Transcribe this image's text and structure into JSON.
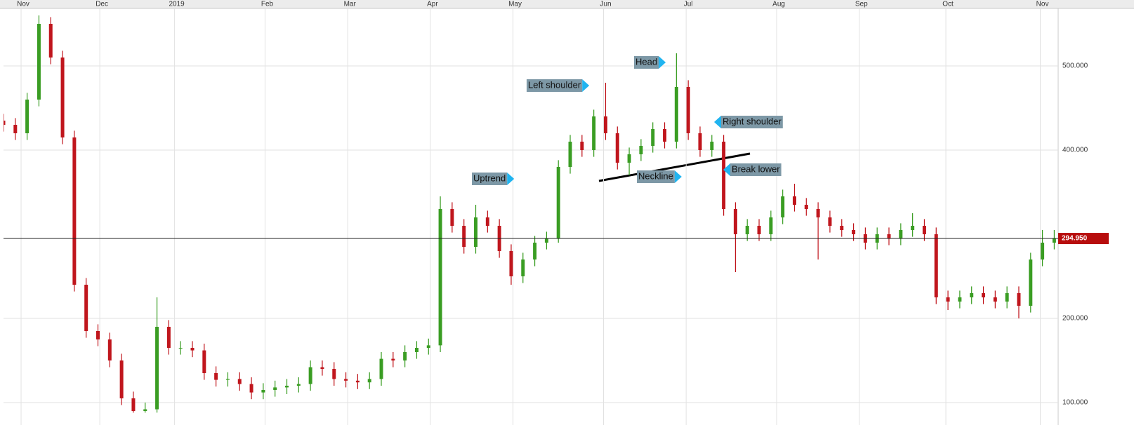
{
  "chart_data": {
    "type": "candlestick",
    "x": [
      0,
      3,
      6,
      9,
      12,
      15,
      18,
      21,
      24,
      27,
      30,
      33,
      36,
      39,
      42,
      45,
      48,
      51,
      54,
      57,
      60,
      63,
      66,
      69,
      72,
      75,
      78,
      81,
      84,
      87,
      90,
      93,
      96,
      99,
      102,
      105,
      108,
      111,
      114,
      117,
      120,
      123,
      126,
      129,
      132,
      135,
      138,
      141,
      144,
      147,
      150,
      153,
      156,
      159,
      162,
      165,
      168,
      171,
      174,
      177,
      180,
      183,
      186,
      189,
      192,
      195,
      198,
      201,
      204,
      207,
      210,
      213,
      216,
      219,
      222,
      225,
      228,
      231,
      234,
      237,
      240,
      243,
      246,
      249,
      252,
      255,
      258,
      261,
      264,
      267
    ],
    "open": [
      435,
      430,
      420,
      460,
      550,
      510,
      415,
      240,
      185,
      175,
      150,
      105,
      90,
      92,
      190,
      165,
      165,
      162,
      135,
      127,
      128,
      122,
      112,
      115,
      118,
      120,
      122,
      142,
      140,
      128,
      126,
      124,
      128,
      152,
      150,
      160,
      165,
      168,
      330,
      310,
      285,
      320,
      310,
      280,
      250,
      270,
      290,
      295,
      380,
      410,
      400,
      440,
      420,
      385,
      395,
      405,
      425,
      410,
      475,
      420,
      400,
      410,
      330,
      300,
      310,
      300,
      320,
      345,
      335,
      330,
      320,
      310,
      305,
      300,
      290,
      300,
      295,
      305,
      310,
      300,
      225,
      220,
      225,
      230,
      225,
      220,
      230,
      215,
      270,
      290
    ],
    "high": [
      443,
      438,
      468,
      560,
      558,
      518,
      423,
      248,
      193,
      183,
      158,
      113,
      100,
      225,
      198,
      173,
      173,
      170,
      143,
      136,
      136,
      130,
      123,
      126,
      128,
      130,
      150,
      150,
      148,
      136,
      134,
      136,
      160,
      160,
      168,
      173,
      176,
      345,
      338,
      318,
      335,
      328,
      318,
      288,
      278,
      298,
      303,
      388,
      418,
      418,
      448,
      480,
      428,
      403,
      413,
      433,
      433,
      515,
      483,
      428,
      418,
      418,
      338,
      318,
      318,
      328,
      353,
      360,
      343,
      338,
      328,
      318,
      313,
      308,
      308,
      308,
      313,
      325,
      318,
      308,
      233,
      233,
      238,
      238,
      233,
      238,
      238,
      278,
      305,
      305
    ],
    "low": [
      422,
      412,
      412,
      452,
      502,
      407,
      232,
      177,
      167,
      142,
      97,
      88,
      88,
      88,
      157,
      157,
      154,
      127,
      119,
      119,
      114,
      104,
      104,
      107,
      110,
      112,
      114,
      132,
      120,
      118,
      116,
      116,
      120,
      142,
      142,
      152,
      157,
      160,
      302,
      277,
      277,
      302,
      272,
      240,
      242,
      262,
      282,
      290,
      372,
      392,
      392,
      412,
      377,
      370,
      387,
      397,
      402,
      402,
      412,
      392,
      392,
      322,
      255,
      292,
      292,
      292,
      312,
      327,
      322,
      270,
      302,
      297,
      292,
      282,
      282,
      287,
      287,
      297,
      292,
      217,
      210,
      212,
      217,
      217,
      212,
      212,
      200,
      207,
      262,
      282
    ],
    "close": [
      430,
      420,
      460,
      550,
      510,
      415,
      240,
      185,
      175,
      150,
      105,
      90,
      92,
      190,
      165,
      165,
      162,
      135,
      127,
      128,
      122,
      112,
      115,
      118,
      120,
      122,
      142,
      140,
      128,
      126,
      124,
      128,
      152,
      150,
      160,
      165,
      168,
      330,
      310,
      285,
      320,
      310,
      280,
      250,
      270,
      290,
      295,
      380,
      410,
      400,
      440,
      420,
      385,
      395,
      405,
      425,
      410,
      475,
      420,
      400,
      410,
      330,
      300,
      310,
      300,
      320,
      345,
      335,
      330,
      320,
      310,
      305,
      300,
      290,
      300,
      295,
      305,
      310,
      300,
      225,
      220,
      225,
      230,
      225,
      220,
      230,
      215,
      270,
      290,
      295
    ],
    "up_color": "#3a9d23",
    "down_color": "#c0161d",
    "xlim": [
      0,
      268
    ],
    "xticks": [
      {
        "value": 5,
        "label": "Nov"
      },
      {
        "value": 25,
        "label": "Dec"
      },
      {
        "value": 44,
        "label": "2019"
      },
      {
        "value": 67,
        "label": "Feb"
      },
      {
        "value": 88,
        "label": "Mar"
      },
      {
        "value": 109,
        "label": "Apr"
      },
      {
        "value": 130,
        "label": "May"
      },
      {
        "value": 153,
        "label": "Jun"
      },
      {
        "value": 174,
        "label": "Jul"
      },
      {
        "value": 197,
        "label": "Aug"
      },
      {
        "value": 218,
        "label": "Sep"
      },
      {
        "value": 240,
        "label": "Oct"
      },
      {
        "value": 264,
        "label": "Nov"
      }
    ],
    "ylim": [
      88,
      568
    ],
    "yticks": [
      {
        "value": 100,
        "label": "100.000"
      },
      {
        "value": 200,
        "label": "200.000"
      },
      {
        "value": 400,
        "label": "400.000"
      },
      {
        "value": 500,
        "label": "500.000"
      }
    ],
    "grid": true,
    "last_price": {
      "value": 294.95,
      "label": "294.950"
    },
    "annotations": [
      "Head",
      "Left shoulder",
      "Right shoulder",
      "Uptrend",
      "Neckline",
      "Break lower"
    ]
  }
}
